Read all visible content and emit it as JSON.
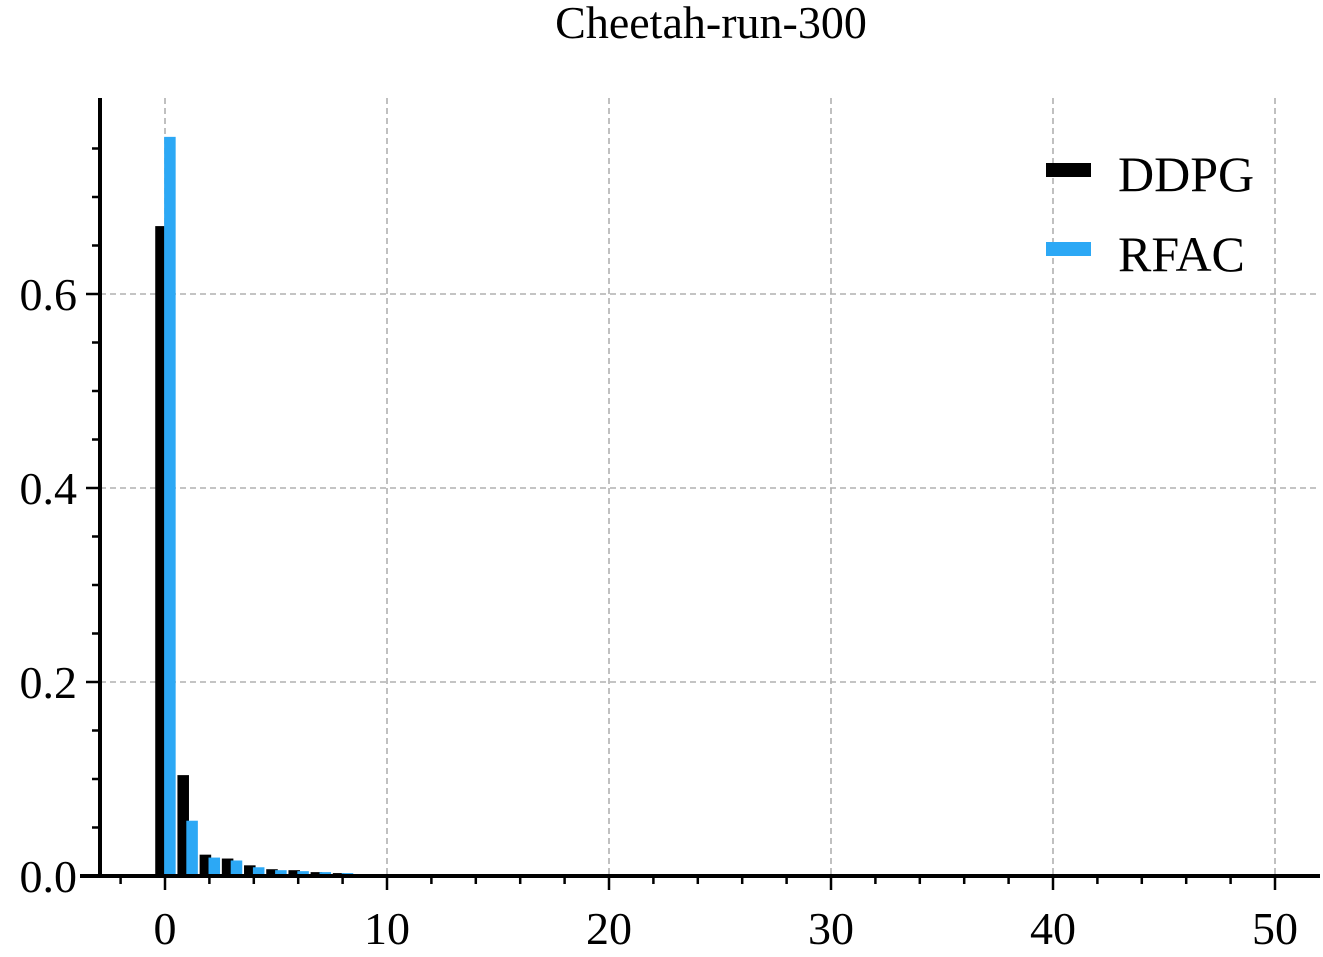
{
  "chart_data": {
    "type": "bar",
    "title": "Cheetah-run-300",
    "xlabel": "",
    "ylabel": "",
    "xlim": [
      -3,
      50
    ],
    "ylim": [
      0,
      0.8
    ],
    "x_ticks": [
      0,
      10,
      20,
      30,
      40,
      50
    ],
    "y_ticks": [
      0.0,
      0.2,
      0.4,
      0.6
    ],
    "x_tick_labels": [
      "0",
      "10",
      "20",
      "30",
      "40",
      "50"
    ],
    "y_tick_labels": [
      "0.0",
      "0.2",
      "0.4",
      "0.6"
    ],
    "grid": true,
    "legend_position": "top-right",
    "x": [
      0,
      1,
      2,
      3,
      4,
      5,
      6,
      7,
      8,
      9
    ],
    "series": [
      {
        "name": "DDPG",
        "color": "#000000",
        "values": [
          0.67,
          0.104,
          0.022,
          0.018,
          0.011,
          0.007,
          0.006,
          0.004,
          0.003,
          0.002
        ]
      },
      {
        "name": "RFAC",
        "color": "#2ca8f5",
        "values": [
          0.762,
          0.057,
          0.019,
          0.016,
          0.009,
          0.006,
          0.005,
          0.004,
          0.003,
          0.002
        ]
      }
    ]
  }
}
